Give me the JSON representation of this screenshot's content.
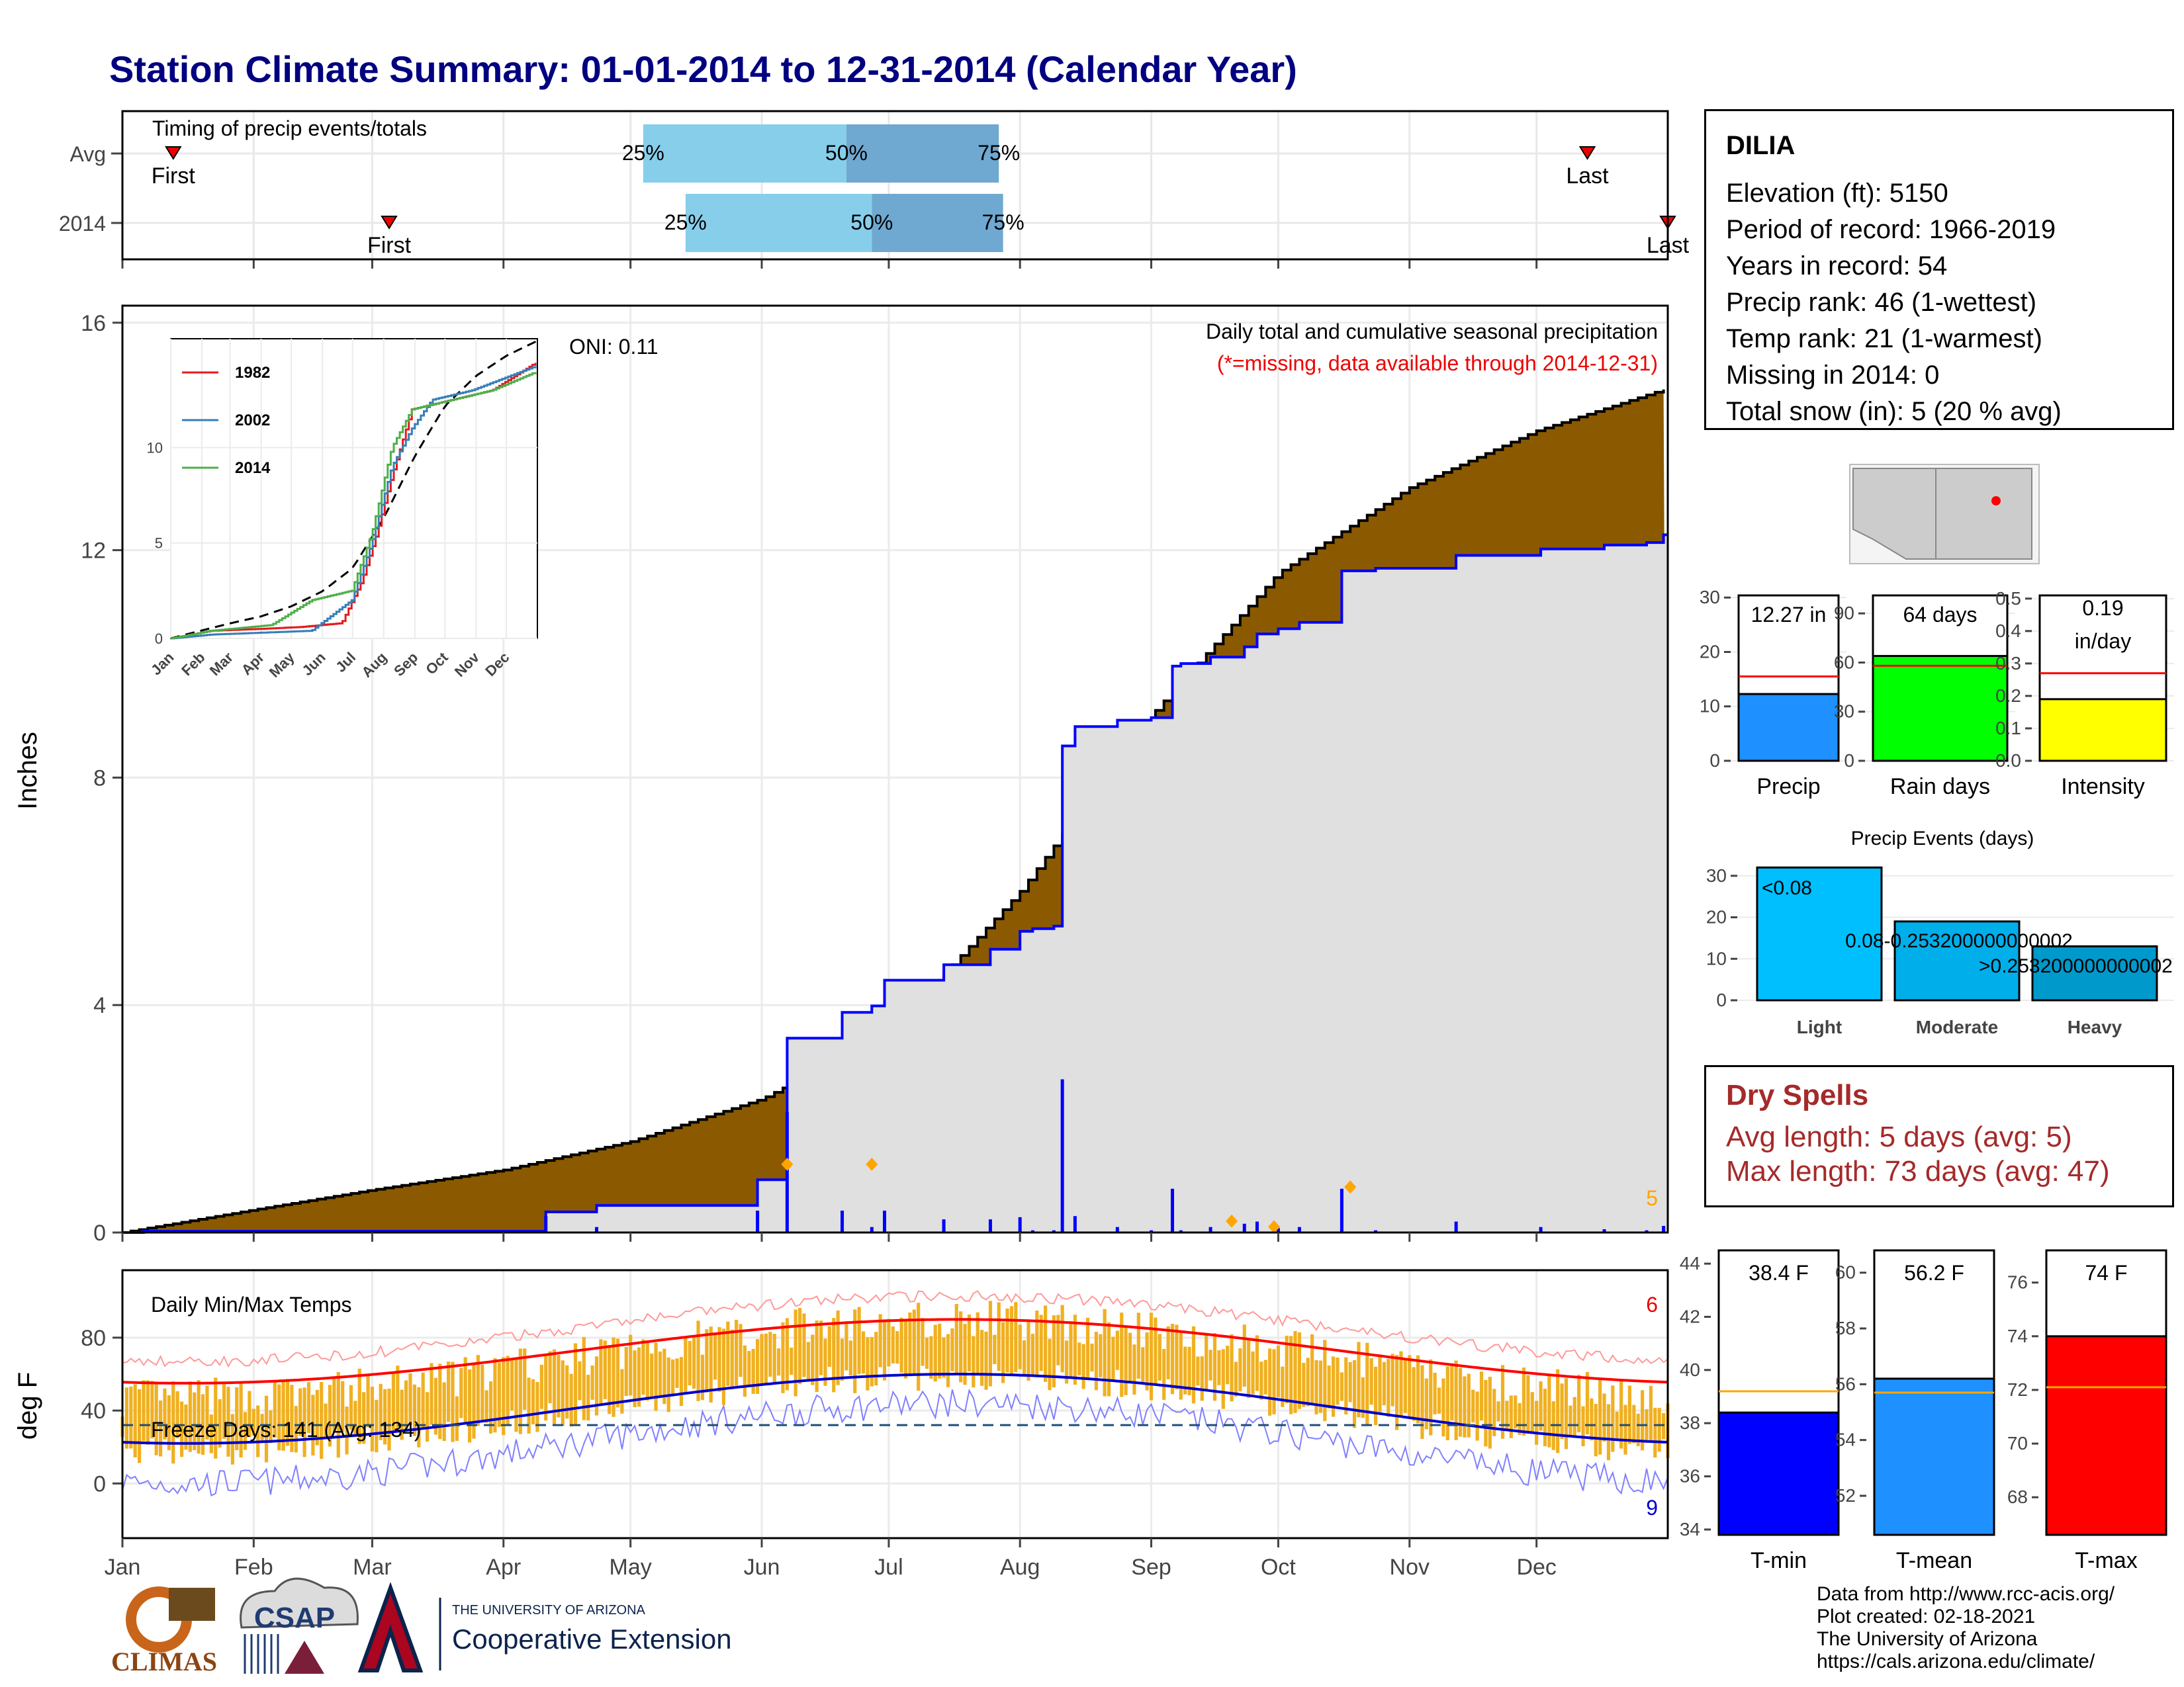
{
  "title": "Station Climate Summary: 01-01-2014 to 12-31-2014 (Calendar Year)",
  "timing": {
    "label": "Timing of precip events/totals",
    "rows": [
      {
        "name": "Avg",
        "q25": 123,
        "q50": 171,
        "q75": 207,
        "first": 12,
        "last": 346
      },
      {
        "name": "2014",
        "q25": 133,
        "q50": 177,
        "q75": 208,
        "first": 63,
        "last": 365
      }
    ],
    "first_label": "First",
    "last_label": "Last",
    "q_labels": [
      "25%",
      "50%",
      "75%"
    ]
  },
  "main": {
    "ylabel": "Inches",
    "yticks": [
      0,
      4,
      8,
      12,
      16
    ],
    "caption": "Daily total and cumulative seasonal precipitation",
    "missing_note": "(*=missing, data available through 2014-12-31)",
    "oni": "ONI: 0.11",
    "corner_count": "5"
  },
  "inset": {
    "series_names": [
      "1982",
      "2002",
      "2014"
    ],
    "series_colors": [
      "#e41a1c",
      "#377eb8",
      "#4daf4a"
    ],
    "yticks": [
      0,
      5,
      10
    ],
    "months": [
      "Jan",
      "Feb",
      "Mar",
      "Apr",
      "May",
      "Jun",
      "Jul",
      "Aug",
      "Sep",
      "Oct",
      "Nov",
      "Dec"
    ]
  },
  "temps": {
    "label": "Daily Min/Max Temps",
    "ylabel": "deg F",
    "yticks": [
      0,
      40,
      80
    ],
    "freeze": "Freeze Days: 141 (Avg: 134)",
    "max_count": "6",
    "min_count": "9"
  },
  "months": [
    "Jan",
    "Feb",
    "Mar",
    "Apr",
    "May",
    "Jun",
    "Jul",
    "Aug",
    "Sep",
    "Oct",
    "Nov",
    "Dec"
  ],
  "station": {
    "name": "DILIA",
    "lines": [
      "Elevation (ft): 5150",
      "Period of record: 1966-2019",
      "Years in record: 54",
      "Precip rank: 46 (1-wettest)",
      "Temp rank: 21 (1-warmest)",
      "Missing in 2014: 0",
      "Total snow (in): 5 (20 % avg)"
    ]
  },
  "bars": {
    "precip": {
      "label": "Precip",
      "value": 12.27,
      "avg": 15.5,
      "text": "12.27 in",
      "yticks": [
        0,
        10,
        20,
        30
      ],
      "ymax": 31,
      "color": "#1e90ff"
    },
    "raindays": {
      "label": "Rain days",
      "value": 64,
      "avg": 58,
      "text": "64 days",
      "yticks": [
        0,
        30,
        60,
        90
      ],
      "ymax": 103,
      "color": "#00ff00"
    },
    "intensity": {
      "label": "Intensity",
      "value": 0.19,
      "avg": 0.27,
      "text1": "0.19",
      "text2": "in/day",
      "yticks": [
        "0.0",
        "0.1",
        "0.2",
        "0.3",
        "0.4",
        "0.5"
      ],
      "ymax": 0.52,
      "color": "#ffff00"
    }
  },
  "events": {
    "title": "Precip Events (days)",
    "yticks": [
      0,
      10,
      20,
      30
    ],
    "categories": [
      "Light",
      "Moderate",
      "Heavy"
    ],
    "values": [
      32,
      19,
      13
    ],
    "labels": [
      "<0.08",
      "0.08-0.253200000000002",
      ">0.253200000000002"
    ],
    "colors": [
      "#00bfff",
      "#00aeea",
      "#0099cc"
    ]
  },
  "dry": {
    "title": "Dry Spells",
    "avg": "Avg length: 5 days (avg: 5)",
    "max": "Max length: 73 days (avg: 47)"
  },
  "tbars": [
    {
      "label": "T-min",
      "value": 38.4,
      "avg": 39.2,
      "text": "38.4 F",
      "ymin": 33.8,
      "ymax": 44.5,
      "yticks": [
        34,
        36,
        38,
        40,
        42,
        44
      ],
      "color": "#0000ff"
    },
    {
      "label": "T-mean",
      "value": 56.2,
      "avg": 55.7,
      "text": "56.2 F",
      "ymin": 50.6,
      "ymax": 60.8,
      "yticks": [
        52,
        54,
        56,
        58,
        60
      ],
      "color": "#1e90ff"
    },
    {
      "label": "T-max",
      "value": 74,
      "avg": 72.1,
      "text": "74 F",
      "ymin": 66.6,
      "ymax": 77.2,
      "yticks": [
        68,
        70,
        72,
        74,
        76
      ],
      "color": "#ff0000"
    }
  ],
  "logos": {
    "climas": "CLIMAS",
    "csap": "CSAP",
    "ua_small": "THE UNIVERSITY OF ARIZONA",
    "ua_big": "Cooperative Extension"
  },
  "credits": [
    "Data from http://www.rcc-acis.org/",
    "Plot created: 02-18-2021",
    "The University of Arizona",
    "https://cals.arizona.edu/climate/"
  ]
}
